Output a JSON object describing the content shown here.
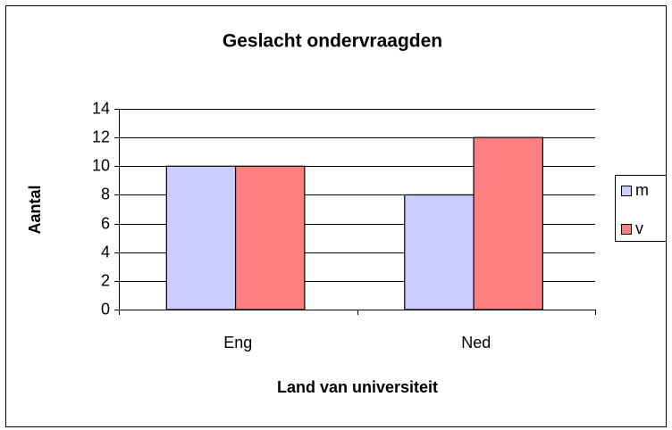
{
  "chart_data": {
    "type": "bar",
    "title": "Geslacht ondervraagden",
    "x_label": "Land van universiteit",
    "y_label": "Aantal",
    "categories": [
      "Eng",
      "Ned"
    ],
    "series": [
      {
        "name": "m",
        "color": "#ccccff",
        "values": [
          10,
          8
        ]
      },
      {
        "name": "v",
        "color": "#ff8080",
        "values": [
          10,
          12
        ]
      }
    ],
    "ylim": [
      0,
      14
    ],
    "yticks": [
      0,
      2,
      4,
      6,
      8,
      10,
      12,
      14
    ],
    "grid": true,
    "legend": "right"
  }
}
